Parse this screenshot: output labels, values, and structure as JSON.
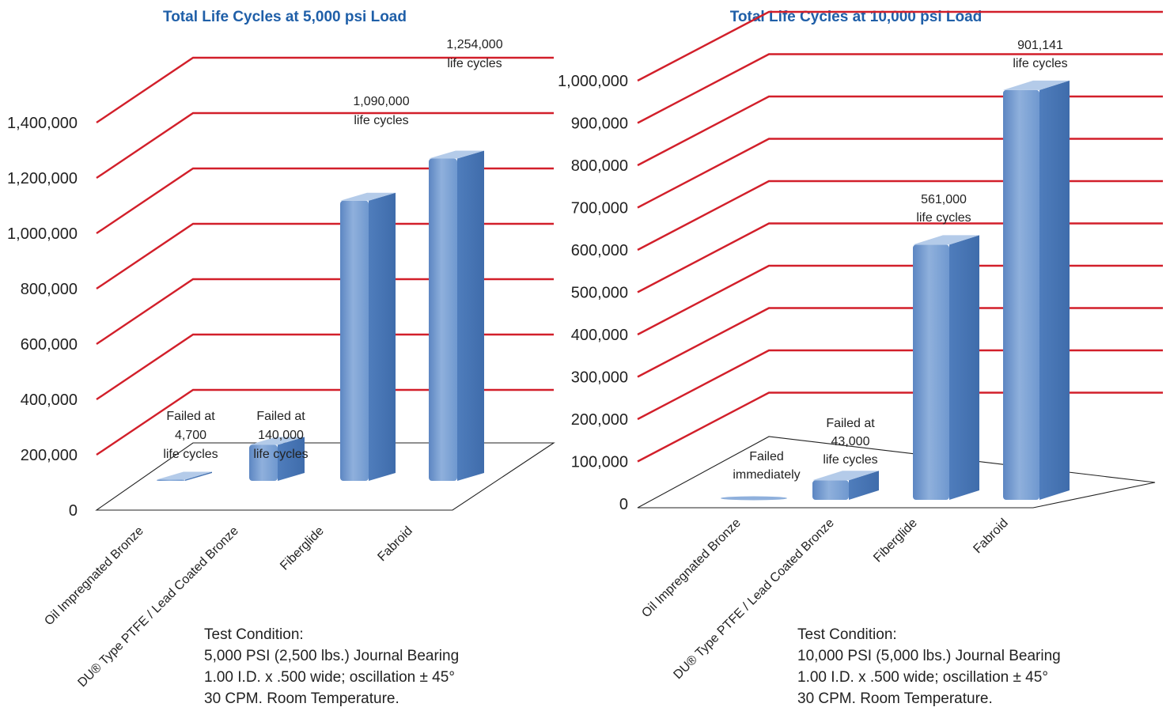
{
  "chart_data": [
    {
      "type": "bar",
      "title": "Total Life Cycles at 5,000 psi Load",
      "categories": [
        "Oil Impregnated Bronze",
        "DU® Type PTFE / Lead Coated Bronze",
        "Fiberglide",
        "Fabroid"
      ],
      "values": [
        4700,
        140000,
        1090000,
        1254000
      ],
      "ylim": [
        0,
        1400000
      ],
      "yticks": [
        "0",
        "200,000",
        "400,000",
        "600,000",
        "800,000",
        "1,000,000",
        "1,200,000",
        "1,400,000"
      ],
      "grid": true,
      "data_labels": [
        [
          "Failed at",
          "4,700",
          "life cycles"
        ],
        [
          "Failed at",
          "140,000",
          "life cycles"
        ],
        [
          "1,090,000",
          "life cycles"
        ],
        [
          "1,254,000",
          "life cycles"
        ]
      ],
      "note": [
        "Test Condition:",
        "5,000 PSI (2,500 lbs.) Journal Bearing",
        "1.00 I.D. x .500 wide; oscillation ± 45°",
        "30 CPM. Room Temperature."
      ]
    },
    {
      "type": "bar",
      "title": "Total Life Cycles at 10,000 psi Load",
      "categories": [
        "Oil Impregnated Bronze",
        "DU® Type PTFE / Lead Coated Bronze",
        "Fiberglide",
        "Fabroid"
      ],
      "values": [
        0,
        43000,
        561000,
        901141
      ],
      "ylim": [
        0,
        1000000
      ],
      "yticks": [
        "0",
        "100,000",
        "200,000",
        "300,000",
        "400,000",
        "500,000",
        "600,000",
        "700,000",
        "800,000",
        "900,000",
        "1,000,000"
      ],
      "grid": true,
      "data_labels": [
        [
          "Failed",
          "immediately"
        ],
        [
          "Failed at",
          "43,000",
          "life cycles"
        ],
        [
          "561,000",
          "life cycles"
        ],
        [
          "901,141",
          "life cycles"
        ]
      ],
      "note": [
        "Test Condition:",
        "10,000 PSI (5,000 lbs.) Journal Bearing",
        "1.00 I.D. x .500 wide; oscillation ± 45°",
        "30 CPM. Room Temperature."
      ]
    }
  ],
  "colors": {
    "title": "#1f5fa8",
    "grid": "#d21f2a",
    "bar_front": "#6f98cf",
    "bar_side": "#4a78b8",
    "bar_top": "#a9c4e6"
  }
}
